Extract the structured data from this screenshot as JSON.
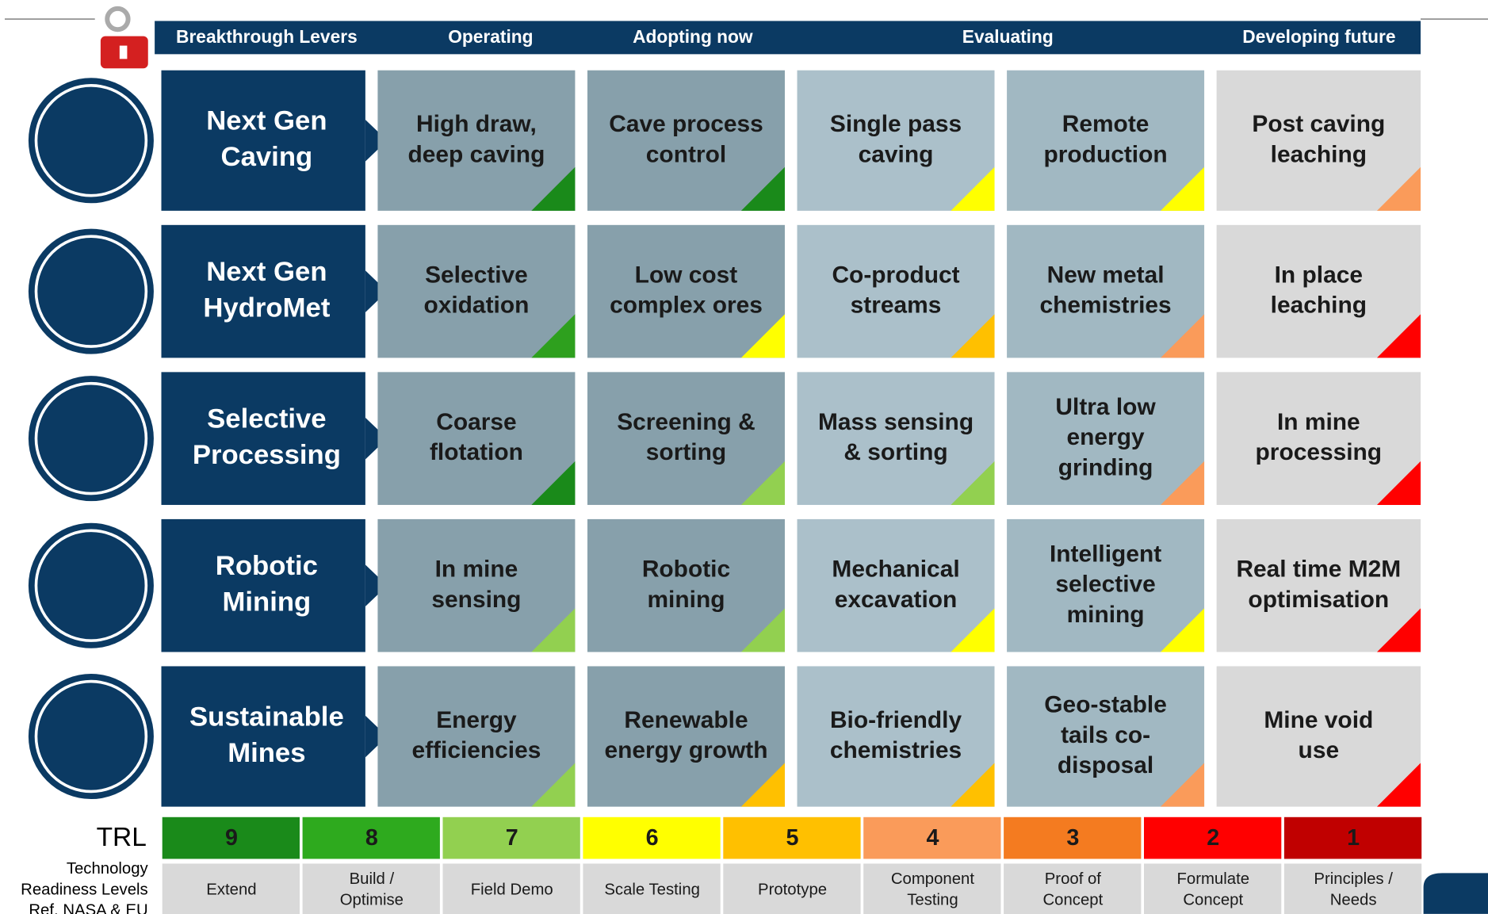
{
  "header": {
    "columns": [
      "Breakthrough Levers",
      "Operating",
      "Adopting now",
      "Evaluating",
      "Developing future"
    ]
  },
  "rows": [
    {
      "lever": [
        "Next Gen",
        "Caving"
      ],
      "cells": [
        {
          "lines": [
            "High draw,",
            "deep caving"
          ],
          "color": "#1a8a1a"
        },
        {
          "lines": [
            "Cave process",
            "control"
          ],
          "color": "#1a8a1a"
        },
        {
          "lines": [
            "Single pass",
            "caving"
          ],
          "color": "#ffff00"
        },
        {
          "lines": [
            "Remote",
            "production"
          ],
          "color": "#ffff00"
        },
        {
          "lines": [
            "Post caving",
            "leaching"
          ],
          "color": "#fa9b5a"
        }
      ]
    },
    {
      "lever": [
        "Next Gen",
        "HydroMet"
      ],
      "cells": [
        {
          "lines": [
            "Selective",
            "oxidation"
          ],
          "color": "#2ea01e"
        },
        {
          "lines": [
            "Low cost",
            "complex ores"
          ],
          "color": "#ffff00"
        },
        {
          "lines": [
            "Co-product",
            "streams"
          ],
          "color": "#ffc000"
        },
        {
          "lines": [
            "New metal",
            "chemistries"
          ],
          "color": "#fa9b5a"
        },
        {
          "lines": [
            "In place",
            "leaching"
          ],
          "color": "#ff0000"
        }
      ]
    },
    {
      "lever": [
        "Selective",
        "Processing"
      ],
      "cells": [
        {
          "lines": [
            "Coarse",
            "flotation"
          ],
          "color": "#1a8a1a"
        },
        {
          "lines": [
            "Screening &",
            "sorting"
          ],
          "color": "#92d050"
        },
        {
          "lines": [
            "Mass sensing",
            "& sorting"
          ],
          "color": "#92d050"
        },
        {
          "lines": [
            "Ultra low",
            "energy",
            "grinding"
          ],
          "color": "#fa9b5a"
        },
        {
          "lines": [
            "In mine",
            "processing"
          ],
          "color": "#ff0000"
        }
      ]
    },
    {
      "lever": [
        "Robotic",
        "Mining"
      ],
      "cells": [
        {
          "lines": [
            "In mine",
            "sensing"
          ],
          "color": "#92d050"
        },
        {
          "lines": [
            "Robotic",
            "mining"
          ],
          "color": "#92d050"
        },
        {
          "lines": [
            "Mechanical",
            "excavation"
          ],
          "color": "#ffff00"
        },
        {
          "lines": [
            "Intelligent",
            "selective",
            "mining"
          ],
          "color": "#ffff00"
        },
        {
          "lines": [
            "Real time M2M",
            "optimisation"
          ],
          "color": "#ff0000"
        }
      ]
    },
    {
      "lever": [
        "Sustainable",
        "Mines"
      ],
      "cells": [
        {
          "lines": [
            "Energy",
            "efficiencies"
          ],
          "color": "#92d050"
        },
        {
          "lines": [
            "Renewable",
            "energy growth"
          ],
          "color": "#ffc000"
        },
        {
          "lines": [
            "Bio-friendly",
            "chemistries"
          ],
          "color": "#ffc000"
        },
        {
          "lines": [
            "Geo-stable",
            "tails co-",
            "disposal"
          ],
          "color": "#fa9b5a"
        },
        {
          "lines": [
            "Mine void",
            "use"
          ],
          "color": "#ff0000"
        }
      ]
    }
  ],
  "trl": {
    "title": "TRL",
    "note": [
      "Technology",
      "Readiness Levels",
      "Ref. NASA & EU"
    ],
    "levels": [
      {
        "number": 9,
        "color": "#1a8a1a",
        "label": [
          "Extend"
        ]
      },
      {
        "number": 8,
        "color": "#2eaa1e",
        "label": [
          "Build /",
          "Optimise"
        ]
      },
      {
        "number": 7,
        "color": "#92d050",
        "label": [
          "Field Demo"
        ]
      },
      {
        "number": 6,
        "color": "#ffff00",
        "label": [
          "Scale Testing"
        ]
      },
      {
        "number": 5,
        "color": "#ffc000",
        "label": [
          "Prototype"
        ]
      },
      {
        "number": 4,
        "color": "#fa9b5a",
        "label": [
          "Component",
          "Testing"
        ]
      },
      {
        "number": 3,
        "color": "#f47b20",
        "label": [
          "Proof of",
          "Concept"
        ]
      },
      {
        "number": 2,
        "color": "#ff0000",
        "label": [
          "Formulate",
          "Concept"
        ]
      },
      {
        "number": 1,
        "color": "#c00000",
        "label": [
          "Principles /",
          "Needs"
        ]
      }
    ]
  }
}
